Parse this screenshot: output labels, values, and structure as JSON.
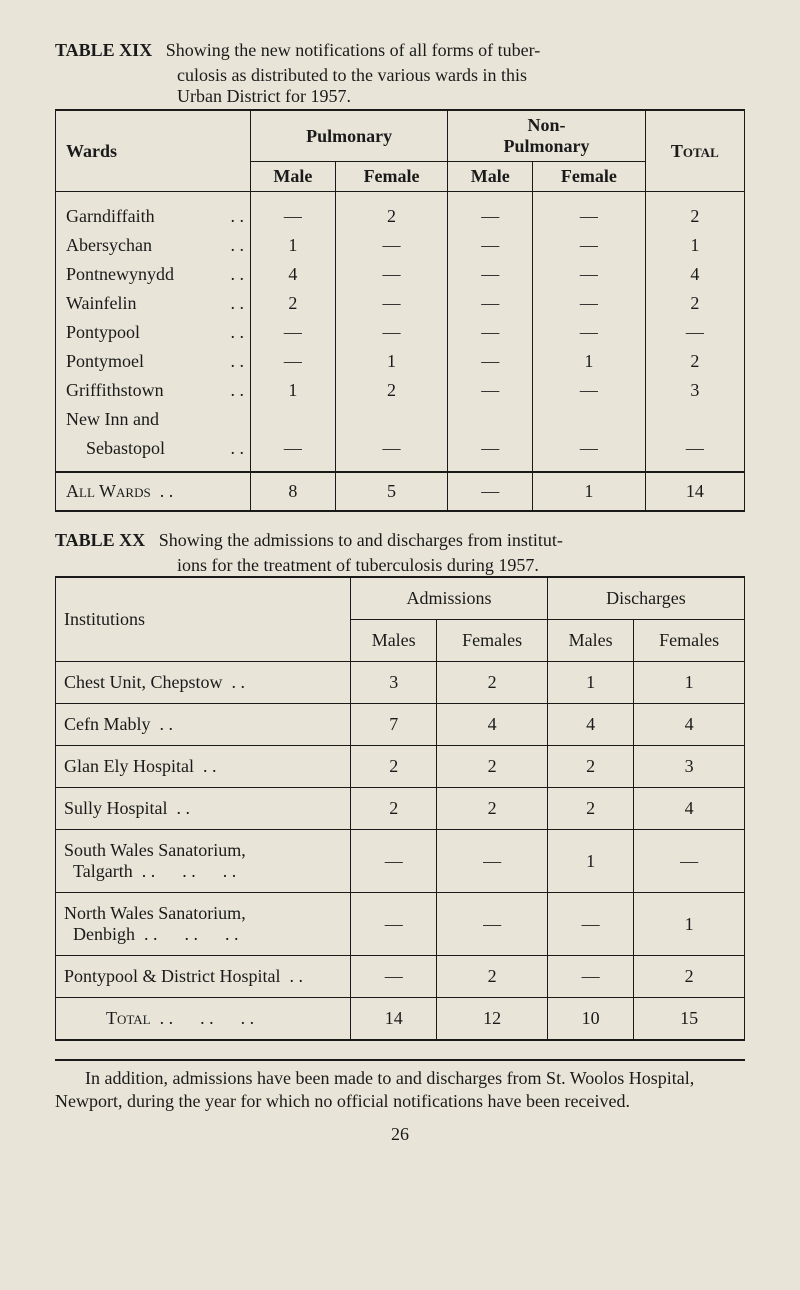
{
  "table1": {
    "label": "TABLE XIX",
    "desc_line1": "Showing the new notifications of all forms of tuber-",
    "desc_line2": "culosis as distributed to the various wards in this",
    "desc_line3": "Urban District for 1957.",
    "headers": {
      "wards": "Wards",
      "pulmonary": "Pulmonary",
      "nonpulmonary": "Non-\nPulmonary",
      "total": "Total",
      "male": "Male",
      "female": "Female"
    },
    "rows": [
      {
        "ward": "Garndiffaith",
        "pm": "—",
        "pf": "2",
        "npm": "—",
        "npf": "—",
        "total": "2"
      },
      {
        "ward": "Abersychan",
        "pm": "1",
        "pf": "—",
        "npm": "—",
        "npf": "—",
        "total": "1"
      },
      {
        "ward": "Pontnewynydd",
        "pm": "4",
        "pf": "—",
        "npm": "—",
        "npf": "—",
        "total": "4"
      },
      {
        "ward": "Wainfelin",
        "pm": "2",
        "pf": "—",
        "npm": "—",
        "npf": "—",
        "total": "2"
      },
      {
        "ward": "Pontypool",
        "pm": "—",
        "pf": "—",
        "npm": "—",
        "npf": "—",
        "total": "—"
      },
      {
        "ward": "Pontymoel",
        "pm": "—",
        "pf": "1",
        "npm": "—",
        "npf": "1",
        "total": "2"
      },
      {
        "ward": "Griffithstown",
        "pm": "1",
        "pf": "2",
        "npm": "—",
        "npf": "—",
        "total": "3"
      },
      {
        "ward": "New Inn and",
        "pm": "",
        "pf": "",
        "npm": "",
        "npf": "",
        "total": ""
      },
      {
        "ward": "Sebastopol",
        "indent": true,
        "pm": "—",
        "pf": "—",
        "npm": "—",
        "npf": "—",
        "total": "—"
      }
    ],
    "footer": {
      "label": "All Wards",
      "pm": "8",
      "pf": "5",
      "npm": "—",
      "npf": "1",
      "total": "14"
    }
  },
  "table2": {
    "label": "TABLE XX",
    "desc_line1": "Showing the admissions to and discharges from institut-",
    "desc_line2": "ions for the treatment of tuberculosis during 1957.",
    "headers": {
      "institutions": "Institutions",
      "admissions": "Admissions",
      "discharges": "Discharges",
      "males": "Males",
      "females": "Females"
    },
    "rows": [
      {
        "inst": "Chest Unit, Chepstow",
        "am": "3",
        "af": "2",
        "dm": "1",
        "df": "1"
      },
      {
        "inst": "Cefn Mably",
        "am": "7",
        "af": "4",
        "dm": "4",
        "df": "4"
      },
      {
        "inst": "Glan Ely Hospital",
        "am": "2",
        "af": "2",
        "dm": "2",
        "df": "3"
      },
      {
        "inst": "Sully Hospital",
        "am": "2",
        "af": "2",
        "dm": "2",
        "df": "4"
      },
      {
        "inst": "South Wales Sanatorium,\n  Talgarth",
        "multiline": true,
        "line1": "South Wales Sanatorium,",
        "line2": "Talgarth",
        "am": "—",
        "af": "—",
        "dm": "1",
        "df": "—"
      },
      {
        "inst": "North Wales Sanatorium,\n  Denbigh",
        "multiline": true,
        "line1": "North Wales Sanatorium,",
        "line2": "Denbigh",
        "am": "—",
        "af": "—",
        "dm": "—",
        "df": "1"
      },
      {
        "inst": "Pontypool & District Hospital",
        "am": "—",
        "af": "2",
        "dm": "—",
        "df": "2"
      }
    ],
    "footer": {
      "label": "Total",
      "am": "14",
      "af": "12",
      "dm": "10",
      "df": "15"
    }
  },
  "footer_note": "In addition, admissions have been made to and discharges from St. Woolos Hospital, Newport, during the year for which no official notifications have been received.",
  "page_number": "26"
}
